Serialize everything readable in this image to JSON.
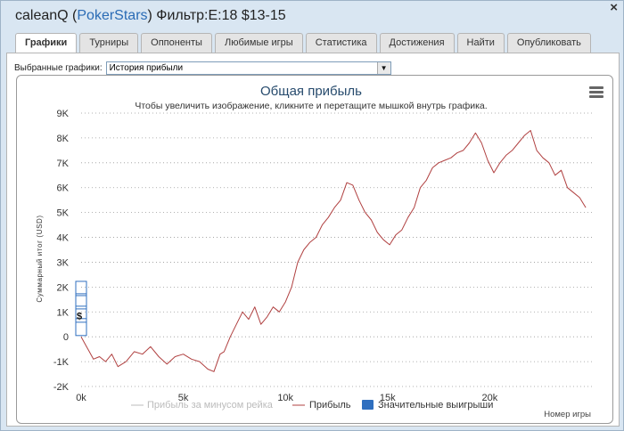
{
  "window": {
    "player": "caleanQ",
    "site": "PokerStars",
    "filter": "Фильтр:E:18 $13-15",
    "close_label": "×"
  },
  "tabs": [
    {
      "label": "Графики",
      "active": true
    },
    {
      "label": "Турниры",
      "active": false
    },
    {
      "label": "Оппоненты",
      "active": false
    },
    {
      "label": "Любимые игры",
      "active": false
    },
    {
      "label": "Статистика",
      "active": false
    },
    {
      "label": "Достижения",
      "active": false
    },
    {
      "label": "Найти",
      "active": false
    },
    {
      "label": "Опубликовать",
      "active": false
    }
  ],
  "selector": {
    "label": "Выбранные графики:",
    "value": "История прибыли"
  },
  "chart_data": {
    "type": "line",
    "title": "Общая прибыль",
    "subtitle": "Чтобы увеличить изображение, кликните и перетащите мышкой внутрь графика.",
    "xlabel": "Номер игры",
    "ylabel": "Суммарный итог (USD)",
    "xlim": [
      0,
      25000
    ],
    "ylim": [
      -2000,
      9000
    ],
    "x_ticks": [
      0,
      5000,
      10000,
      15000,
      20000
    ],
    "x_tick_labels": [
      "0k",
      "5k",
      "10k",
      "15k",
      "20k"
    ],
    "y_ticks": [
      -2000,
      -1000,
      0,
      1000,
      2000,
      3000,
      4000,
      5000,
      6000,
      7000,
      8000,
      9000
    ],
    "y_tick_labels": [
      "-2K",
      "-1K",
      "0",
      "1K",
      "2K",
      "3K",
      "4K",
      "5K",
      "6K",
      "7K",
      "8K",
      "9K"
    ],
    "grid": true,
    "legend": [
      "Прибыль за минусом рейка",
      "Прибыль",
      "Значительные выигрыши"
    ],
    "colors": {
      "profit": "#b04040",
      "rake": "#bbbbbb",
      "big_wins": "#2f6fbf",
      "grid": "#999999"
    },
    "series": [
      {
        "name": "Прибыль",
        "x": [
          0,
          200,
          400,
          600,
          900,
          1200,
          1500,
          1800,
          2200,
          2600,
          3000,
          3400,
          3800,
          4200,
          4600,
          5000,
          5400,
          5800,
          6200,
          6500,
          6800,
          7000,
          7300,
          7600,
          7900,
          8200,
          8500,
          8800,
          9100,
          9400,
          9700,
          10000,
          10300,
          10600,
          10900,
          11200,
          11500,
          11800,
          12100,
          12400,
          12700,
          13000,
          13300,
          13600,
          13900,
          14200,
          14500,
          14800,
          15100,
          15400,
          15700,
          16000,
          16300,
          16600,
          16900,
          17200,
          17500,
          17800,
          18100,
          18400,
          18700,
          19000,
          19300,
          19600,
          19900,
          20200,
          20500,
          20800,
          21100,
          21400,
          21700,
          22000,
          22300,
          22600,
          22900,
          23200,
          23500,
          23800,
          24100,
          24400,
          24700
        ],
        "values": [
          0,
          -300,
          -600,
          -900,
          -800,
          -1000,
          -700,
          -1200,
          -1000,
          -600,
          -700,
          -400,
          -800,
          -1100,
          -800,
          -700,
          -900,
          -1000,
          -1300,
          -1400,
          -700,
          -600,
          0,
          500,
          1000,
          700,
          1200,
          500,
          800,
          1200,
          1000,
          1400,
          2000,
          3000,
          3500,
          3800,
          4000,
          4500,
          4800,
          5200,
          5500,
          6200,
          6100,
          5500,
          5000,
          4700,
          4200,
          3900,
          3700,
          4100,
          4300,
          4800,
          5200,
          6000,
          6300,
          6800,
          7000,
          7100,
          7200,
          7400,
          7500,
          7800,
          8200,
          7800,
          7100,
          6600,
          7000,
          7300,
          7500,
          7800,
          8100,
          8300,
          7500,
          7200,
          7000,
          6500,
          6700,
          6000,
          5800,
          5600,
          5200
        ]
      }
    ],
    "big_wins_marker": "$"
  }
}
